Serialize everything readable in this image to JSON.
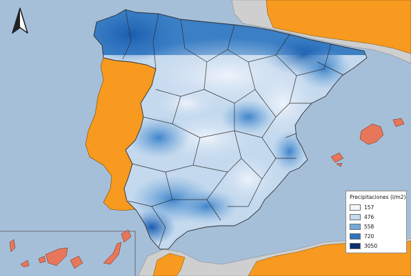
{
  "legend": {
    "title": "Precipitaciones (l/m2)",
    "items": [
      {
        "label": "157",
        "color": "#f4f7fc"
      },
      {
        "label": "476",
        "color": "#c4d9ee"
      },
      {
        "label": "558",
        "color": "#73a9da"
      },
      {
        "label": "720",
        "color": "#2c74c0"
      },
      {
        "label": "3050",
        "color": "#0b2f6e"
      }
    ]
  },
  "colors": {
    "sea": "#a6bfd9",
    "land_other": "#cfcfcf",
    "portugal": "#f79a1f",
    "islands": "#e7775a",
    "borders": "#2e2e2e"
  },
  "icons": {
    "north_arrow": "north-arrow-icon"
  }
}
